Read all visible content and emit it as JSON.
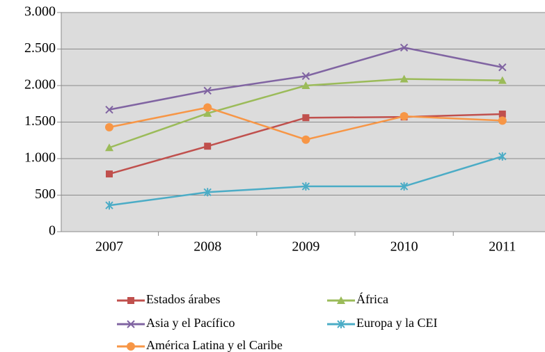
{
  "chart_data": {
    "type": "line",
    "categories": [
      "2007",
      "2008",
      "2009",
      "2010",
      "2011"
    ],
    "series": [
      {
        "name": "Estados árabes",
        "color": "#c0504d",
        "marker": "square",
        "values": [
          790,
          1170,
          1560,
          1570,
          1610
        ]
      },
      {
        "name": "África",
        "color": "#9bbb59",
        "marker": "triangle",
        "values": [
          1150,
          1620,
          2000,
          2090,
          2070
        ]
      },
      {
        "name": "Asia y el Pacífico",
        "color": "#8064a2",
        "marker": "x",
        "values": [
          1670,
          1930,
          2130,
          2520,
          2250
        ]
      },
      {
        "name": "Europa y la CEI",
        "color": "#4bacc6",
        "marker": "star",
        "values": [
          360,
          540,
          620,
          620,
          1030
        ]
      },
      {
        "name": "América Latina y el Caribe",
        "color": "#f79646",
        "marker": "circle",
        "values": [
          1430,
          1700,
          1260,
          1580,
          1520
        ]
      }
    ],
    "ylim": [
      0,
      3000
    ],
    "yticks": [
      0,
      500,
      {
        "value": 1000,
        "label": "1.000"
      },
      {
        "value": 1500,
        "label": "1.500"
      },
      {
        "value": 2000,
        "label": "2.000"
      },
      {
        "value": 2500,
        "label": "2.500"
      },
      {
        "value": 3000,
        "label": "3.000"
      }
    ],
    "grid": true,
    "legend": "bottom"
  }
}
